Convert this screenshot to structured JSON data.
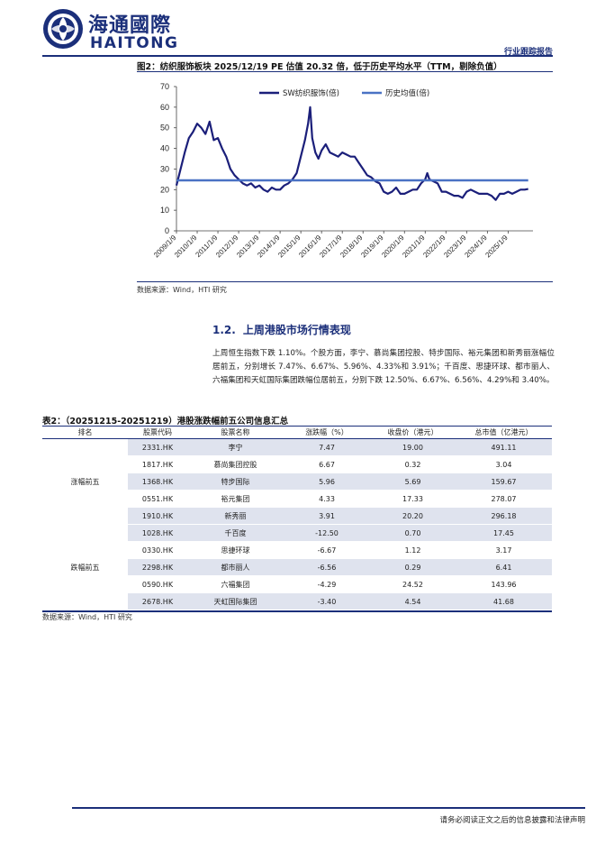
{
  "header": {
    "logo_cn": "海通國際",
    "logo_en": "HAITONG",
    "report_type": "行业跟踪报告"
  },
  "figure": {
    "caption": "图2：纺织服饰板块 2025/12/19 PE 估值 20.32 倍，低于历史平均水平（TTM，剔除负值）",
    "source": "数据来源：Wind，HTI 研究"
  },
  "chart_data": {
    "type": "line",
    "title": "",
    "xlabel": "",
    "ylabel": "",
    "ylim": [
      0,
      70
    ],
    "yticks": [
      0,
      10,
      20,
      30,
      40,
      50,
      60,
      70
    ],
    "xticks": [
      "2009/1/9",
      "2010/1/9",
      "2011/1/9",
      "2012/1/9",
      "2013/1/9",
      "2014/1/9",
      "2015/1/9",
      "2016/1/9",
      "2017/1/9",
      "2018/1/9",
      "2019/1/9",
      "2020/1/9",
      "2021/1/9",
      "2022/1/9",
      "2023/1/9",
      "2024/1/9",
      "2025/1/9"
    ],
    "legend_position": "top-right",
    "grid": false,
    "series": [
      {
        "name": "SW纺织服饰(倍)",
        "color": "#1b1f7a",
        "x": [
          2009.0,
          2009.2,
          2009.4,
          2009.6,
          2009.8,
          2010.0,
          2010.2,
          2010.4,
          2010.6,
          2010.8,
          2011.0,
          2011.2,
          2011.4,
          2011.6,
          2011.8,
          2012.0,
          2012.2,
          2012.4,
          2012.6,
          2012.8,
          2013.0,
          2013.2,
          2013.4,
          2013.6,
          2013.8,
          2014.0,
          2014.2,
          2014.4,
          2014.6,
          2014.8,
          2015.0,
          2015.2,
          2015.35,
          2015.45,
          2015.55,
          2015.7,
          2015.85,
          2016.0,
          2016.2,
          2016.4,
          2016.6,
          2016.8,
          2017.0,
          2017.2,
          2017.4,
          2017.6,
          2017.8,
          2018.0,
          2018.2,
          2018.4,
          2018.6,
          2018.8,
          2019.0,
          2019.2,
          2019.4,
          2019.6,
          2019.8,
          2020.0,
          2020.2,
          2020.4,
          2020.6,
          2020.8,
          2021.0,
          2021.1,
          2021.2,
          2021.4,
          2021.6,
          2021.8,
          2022.0,
          2022.2,
          2022.4,
          2022.6,
          2022.8,
          2023.0,
          2023.2,
          2023.4,
          2023.6,
          2023.8,
          2024.0,
          2024.2,
          2024.4,
          2024.6,
          2024.8,
          2025.0,
          2025.2,
          2025.4,
          2025.6,
          2025.8,
          2025.97
        ],
        "y": [
          22,
          30,
          38,
          45,
          48,
          52,
          50,
          47,
          53,
          44,
          45,
          40,
          36,
          30,
          27,
          25,
          23,
          22,
          23,
          21,
          22,
          20,
          19,
          21,
          20,
          20,
          22,
          23,
          25,
          28,
          36,
          44,
          52,
          60,
          45,
          38,
          35,
          39,
          42,
          38,
          37,
          36,
          38,
          37,
          36,
          36,
          33,
          30,
          27,
          26,
          24,
          23,
          19,
          18,
          19,
          21,
          18,
          18,
          19,
          20,
          20,
          23,
          25,
          28,
          25,
          24,
          23,
          19,
          19,
          18,
          17,
          17,
          16,
          19,
          20,
          19,
          18,
          18,
          18,
          17,
          15,
          18,
          18,
          19,
          18,
          19,
          20,
          20,
          20.32
        ]
      },
      {
        "name": "历史均值(倍)",
        "color": "#4a72c4",
        "x": [
          2009.0,
          2025.97
        ],
        "y": [
          24.5,
          24.5
        ]
      }
    ]
  },
  "section": {
    "number": "1.2.",
    "title": "上周港股市场行情表现",
    "paragraph": "上周恒生指数下跌 1.10%。个股方面，李宁、慕尚集团控股、特步国际、裕元集团和新秀丽涨幅位居前五，分别增长 7.47%、6.67%、5.96%、4.33%和 3.91%；千百度、思捷环球、都市丽人、六福集团和天虹国际集团跌幅位居前五，分别下跌 12.50%、6.67%、6.56%、4.29%和 3.40%。"
  },
  "table": {
    "caption": "表2：（20251215-20251219）港股涨跌幅前五公司信息汇总",
    "headers": [
      "排名",
      "股票代码",
      "股票名称",
      "涨跌幅（%）",
      "收盘价（港元）",
      "总市值（亿港元）"
    ],
    "groups": [
      {
        "label": "涨幅前五",
        "rows": [
          [
            "2331.HK",
            "李宁",
            "7.47",
            "19.00",
            "491.11"
          ],
          [
            "1817.HK",
            "慕尚集团控股",
            "6.67",
            "0.32",
            "3.04"
          ],
          [
            "1368.HK",
            "特步国际",
            "5.96",
            "5.69",
            "159.67"
          ],
          [
            "0551.HK",
            "裕元集团",
            "4.33",
            "17.33",
            "278.07"
          ],
          [
            "1910.HK",
            "新秀丽",
            "3.91",
            "20.20",
            "296.18"
          ]
        ]
      },
      {
        "label": "跌幅前五",
        "rows": [
          [
            "1028.HK",
            "千百度",
            "-12.50",
            "0.70",
            "17.45"
          ],
          [
            "0330.HK",
            "思捷环球",
            "-6.67",
            "1.12",
            "3.17"
          ],
          [
            "2298.HK",
            "都市丽人",
            "-6.56",
            "0.29",
            "6.41"
          ],
          [
            "0590.HK",
            "六福集团",
            "-4.29",
            "24.52",
            "143.96"
          ],
          [
            "2678.HK",
            "天虹国际集团",
            "-3.40",
            "4.54",
            "41.68"
          ]
        ]
      }
    ],
    "source": "数据来源：Wind，HTI 研究"
  },
  "footer": {
    "text": "请务必阅读正文之后的信息披露和法律声明"
  },
  "colors": {
    "brand": "#1b2f7a",
    "row_shade": "#dfe3ee"
  }
}
